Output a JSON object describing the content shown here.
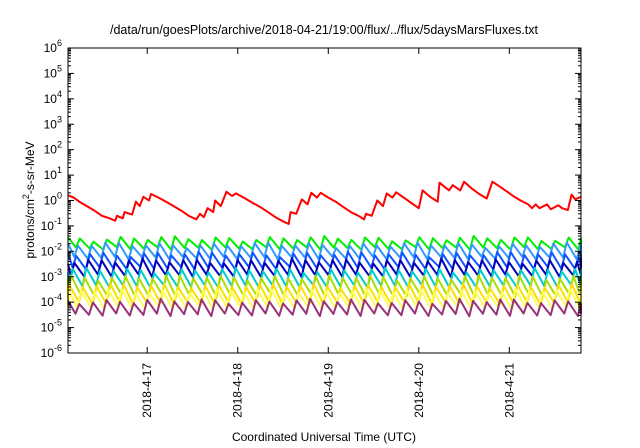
{
  "chart_data": {
    "type": "line",
    "title": "/data/run/goesPlots/archive/2018-04-21/19:00/flux/../flux/5daysMarsFluxes.txt",
    "xlabel": "Coordinated Universal Time (UTC)",
    "ylabel": "protons/cm²-s-sr-MeV",
    "y_scale": "log",
    "ylim": [
      1e-06,
      1000000
    ],
    "y_ticks": [
      {
        "value": 1e-06,
        "base": "10",
        "exp": "-6"
      },
      {
        "value": 1e-05,
        "base": "10",
        "exp": "-5"
      },
      {
        "value": 0.0001,
        "base": "10",
        "exp": "-4"
      },
      {
        "value": 0.001,
        "base": "10",
        "exp": "-3"
      },
      {
        "value": 0.01,
        "base": "10",
        "exp": "-2"
      },
      {
        "value": 0.1,
        "base": "10",
        "exp": "-1"
      },
      {
        "value": 1,
        "base": "10",
        "exp": "0"
      },
      {
        "value": 10,
        "base": "10",
        "exp": "1"
      },
      {
        "value": 100,
        "base": "10",
        "exp": "2"
      },
      {
        "value": 1000,
        "base": "10",
        "exp": "3"
      },
      {
        "value": 10000,
        "base": "10",
        "exp": "4"
      },
      {
        "value": 100000,
        "base": "10",
        "exp": "5"
      },
      {
        "value": 1000000,
        "base": "10",
        "exp": "6"
      }
    ],
    "xlim": [
      "2018-04-16 03:00",
      "2018-04-21 19:00"
    ],
    "x_ticks": [
      {
        "value": "2018-04-17 00:00",
        "label": "2018-4-17"
      },
      {
        "value": "2018-04-18 00:00",
        "label": "2018-4-18"
      },
      {
        "value": "2018-04-19 00:00",
        "label": "2018-4-19"
      },
      {
        "value": "2018-04-20 00:00",
        "label": "2018-4-20"
      },
      {
        "value": "2018-04-21 00:00",
        "label": "2018-4-21"
      }
    ],
    "grid": false,
    "series": [
      {
        "color": "#ff0000",
        "points": [
          [
            "2018-04-16 03:00",
            1.6
          ],
          [
            "2018-04-16 04:30",
            1.3
          ],
          [
            "2018-04-16 06:00",
            0.9
          ],
          [
            "2018-04-16 08:00",
            0.6
          ],
          [
            "2018-04-16 10:00",
            0.4
          ],
          [
            "2018-04-16 12:00",
            0.25
          ],
          [
            "2018-04-16 14:00",
            0.2
          ],
          [
            "2018-04-16 15:30",
            0.16
          ],
          [
            "2018-04-16 16:00",
            0.25
          ],
          [
            "2018-04-16 17:30",
            0.2
          ],
          [
            "2018-04-16 18:00",
            0.35
          ],
          [
            "2018-04-16 20:00",
            0.28
          ],
          [
            "2018-04-16 21:00",
            0.9
          ],
          [
            "2018-04-16 22:00",
            0.6
          ],
          [
            "2018-04-16 23:00",
            1.4
          ],
          [
            "2018-04-17 00:30",
            1.0
          ],
          [
            "2018-04-17 01:00",
            1.8
          ],
          [
            "2018-04-17 03:00",
            1.3
          ],
          [
            "2018-04-17 05:00",
            0.9
          ],
          [
            "2018-04-17 07:00",
            0.6
          ],
          [
            "2018-04-17 09:00",
            0.4
          ],
          [
            "2018-04-17 11:00",
            0.25
          ],
          [
            "2018-04-17 13:00",
            0.18
          ],
          [
            "2018-04-17 14:00",
            0.3
          ],
          [
            "2018-04-17 15:00",
            0.22
          ],
          [
            "2018-04-17 16:00",
            0.5
          ],
          [
            "2018-04-17 17:30",
            0.35
          ],
          [
            "2018-04-17 18:00",
            1.0
          ],
          [
            "2018-04-17 19:30",
            0.6
          ],
          [
            "2018-04-17 21:00",
            2.2
          ],
          [
            "2018-04-17 22:30",
            1.5
          ],
          [
            "2018-04-17 23:30",
            1.9
          ],
          [
            "2018-04-18 02:00",
            1.2
          ],
          [
            "2018-04-18 04:00",
            0.8
          ],
          [
            "2018-04-18 06:00",
            0.55
          ],
          [
            "2018-04-18 08:00",
            0.35
          ],
          [
            "2018-04-18 10:00",
            0.22
          ],
          [
            "2018-04-18 12:00",
            0.15
          ],
          [
            "2018-04-18 13:30",
            0.12
          ],
          [
            "2018-04-18 14:00",
            0.35
          ],
          [
            "2018-04-18 15:30",
            0.3
          ],
          [
            "2018-04-18 17:00",
            1.1
          ],
          [
            "2018-04-18 18:30",
            0.7
          ],
          [
            "2018-04-18 19:30",
            2.0
          ],
          [
            "2018-04-18 21:00",
            1.3
          ],
          [
            "2018-04-18 22:00",
            2.0
          ],
          [
            "2018-04-19 00:00",
            1.3
          ],
          [
            "2018-04-19 02:00",
            0.9
          ],
          [
            "2018-04-19 04:00",
            0.55
          ],
          [
            "2018-04-19 06:00",
            0.35
          ],
          [
            "2018-04-19 08:00",
            0.25
          ],
          [
            "2018-04-19 09:30",
            0.18
          ],
          [
            "2018-04-19 10:00",
            0.3
          ],
          [
            "2018-04-19 11:30",
            0.25
          ],
          [
            "2018-04-19 13:00",
            1.0
          ],
          [
            "2018-04-19 14:30",
            0.6
          ],
          [
            "2018-04-19 15:30",
            1.9
          ],
          [
            "2018-04-19 17:00",
            1.3
          ],
          [
            "2018-04-19 18:00",
            2.1
          ],
          [
            "2018-04-19 20:00",
            1.3
          ],
          [
            "2018-04-19 22:00",
            0.8
          ],
          [
            "2018-04-20 00:00",
            0.5
          ],
          [
            "2018-04-20 01:00",
            2.5
          ],
          [
            "2018-04-20 03:00",
            1.4
          ],
          [
            "2018-04-20 05:00",
            0.9
          ],
          [
            "2018-04-20 05:30",
            5.0
          ],
          [
            "2018-04-20 08:00",
            2.5
          ],
          [
            "2018-04-20 09:00",
            4.0
          ],
          [
            "2018-04-20 11:00",
            2.5
          ],
          [
            "2018-04-20 12:00",
            5.5
          ],
          [
            "2018-04-20 14:00",
            3.0
          ],
          [
            "2018-04-20 16:00",
            1.8
          ],
          [
            "2018-04-20 18:00",
            1.2
          ],
          [
            "2018-04-20 19:30",
            5.5
          ],
          [
            "2018-04-20 21:30",
            3.5
          ],
          [
            "2018-04-20 23:30",
            2.2
          ],
          [
            "2018-04-21 01:00",
            1.5
          ],
          [
            "2018-04-21 03:00",
            1.0
          ],
          [
            "2018-04-21 05:00",
            0.7
          ],
          [
            "2018-04-21 06:00",
            0.5
          ],
          [
            "2018-04-21 07:00",
            0.7
          ],
          [
            "2018-04-21 08:00",
            0.5
          ],
          [
            "2018-04-21 10:00",
            0.7
          ],
          [
            "2018-04-21 11:00",
            0.45
          ],
          [
            "2018-04-21 13:00",
            0.65
          ],
          [
            "2018-04-21 14:00",
            0.5
          ],
          [
            "2018-04-21 15:30",
            0.42
          ],
          [
            "2018-04-21 16:30",
            1.7
          ],
          [
            "2018-04-21 17:30",
            1.1
          ],
          [
            "2018-04-21 19:00",
            1.4
          ]
        ]
      },
      {
        "color": "#00ee00",
        "oscillation": {
          "high": 0.032,
          "low": 0.013,
          "period_hours": 3.6,
          "drop_fraction": 0.72
        }
      },
      {
        "color": "#3399ff",
        "oscillation": {
          "high": 0.018,
          "low": 0.0055,
          "period_hours": 3.6,
          "drop_fraction": 0.72
        }
      },
      {
        "color": "#1155ff",
        "oscillation": {
          "high": 0.0078,
          "low": 0.0022,
          "period_hours": 3.6,
          "drop_fraction": 0.72
        }
      },
      {
        "color": "#0000bb",
        "oscillation": {
          "high": 0.0042,
          "low": 0.0011,
          "period_hours": 3.6,
          "drop_fraction": 0.72
        }
      },
      {
        "color": "#00cccc",
        "oscillation": {
          "high": 0.0018,
          "low": 0.00042,
          "period_hours": 3.6,
          "drop_fraction": 0.72
        }
      },
      {
        "color": "#aadd00",
        "oscillation": {
          "high": 0.00095,
          "low": 0.00018,
          "period_hours": 3.6,
          "drop_fraction": 0.72
        }
      },
      {
        "color": "#ffdd00",
        "oscillation": {
          "high": 0.00045,
          "low": 9e-05,
          "period_hours": 3.6,
          "drop_fraction": 0.72
        }
      },
      {
        "color": "#ffff55",
        "oscillation": {
          "high": 0.00028,
          "low": 6e-05,
          "period_hours": 3.6,
          "drop_fraction": 0.72
        }
      },
      {
        "color": "#993377",
        "oscillation": {
          "high": 0.00011,
          "low": 3.2e-05,
          "period_hours": 3.6,
          "drop_fraction": 0.72
        }
      }
    ]
  }
}
